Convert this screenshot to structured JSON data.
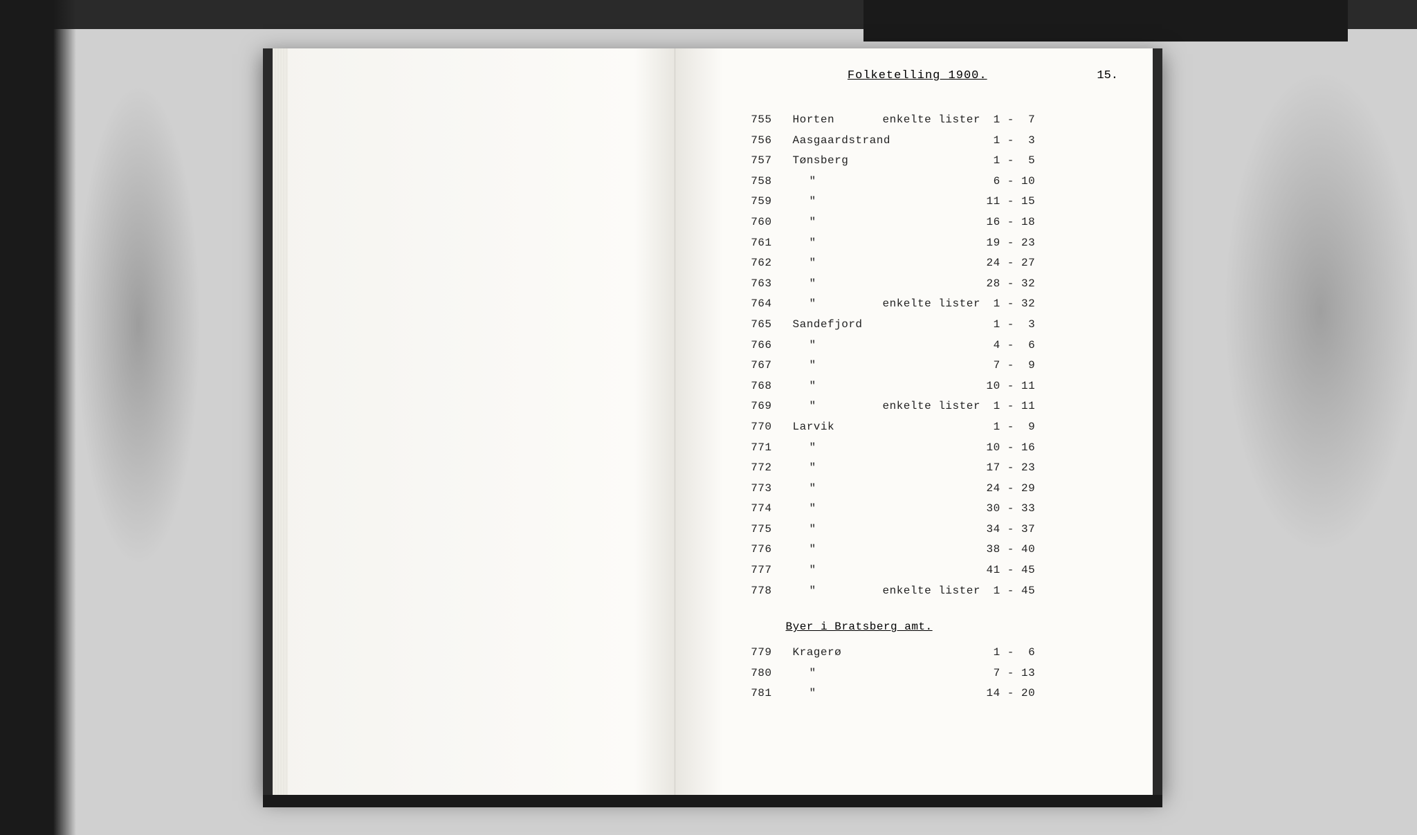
{
  "page": {
    "title": "Folketelling 1900.",
    "number": "15."
  },
  "section1": {
    "rows": [
      {
        "num": "755",
        "name": "Horten",
        "note": "enkelte lister",
        "range": " 1 -  7"
      },
      {
        "num": "756",
        "name": "Aasgaardstrand",
        "note": "",
        "range": " 1 -  3"
      },
      {
        "num": "757",
        "name": "Tønsberg",
        "note": "",
        "range": " 1 -  5"
      },
      {
        "num": "758",
        "name": "\"",
        "note": "",
        "range": " 6 - 10"
      },
      {
        "num": "759",
        "name": "\"",
        "note": "",
        "range": "11 - 15"
      },
      {
        "num": "760",
        "name": "\"",
        "note": "",
        "range": "16 - 18"
      },
      {
        "num": "761",
        "name": "\"",
        "note": "",
        "range": "19 - 23"
      },
      {
        "num": "762",
        "name": "\"",
        "note": "",
        "range": "24 - 27"
      },
      {
        "num": "763",
        "name": "\"",
        "note": "",
        "range": "28 - 32"
      },
      {
        "num": "764",
        "name": "\"",
        "note": "enkelte lister",
        "range": " 1 - 32"
      },
      {
        "num": "765",
        "name": "Sandefjord",
        "note": "",
        "range": " 1 -  3"
      },
      {
        "num": "766",
        "name": "\"",
        "note": "",
        "range": " 4 -  6"
      },
      {
        "num": "767",
        "name": "\"",
        "note": "",
        "range": " 7 -  9"
      },
      {
        "num": "768",
        "name": "\"",
        "note": "",
        "range": "10 - 11"
      },
      {
        "num": "769",
        "name": "\"",
        "note": "enkelte lister",
        "range": " 1 - 11"
      },
      {
        "num": "770",
        "name": "Larvik",
        "note": "",
        "range": " 1 -  9"
      },
      {
        "num": "771",
        "name": "\"",
        "note": "",
        "range": "10 - 16"
      },
      {
        "num": "772",
        "name": "\"",
        "note": "",
        "range": "17 - 23"
      },
      {
        "num": "773",
        "name": "\"",
        "note": "",
        "range": "24 - 29"
      },
      {
        "num": "774",
        "name": "\"",
        "note": "",
        "range": "30 - 33"
      },
      {
        "num": "775",
        "name": "\"",
        "note": "",
        "range": "34 - 37"
      },
      {
        "num": "776",
        "name": "\"",
        "note": "",
        "range": "38 - 40"
      },
      {
        "num": "777",
        "name": "\"",
        "note": "",
        "range": "41 - 45"
      },
      {
        "num": "778",
        "name": "\"",
        "note": "enkelte lister",
        "range": " 1 - 45"
      }
    ]
  },
  "section2": {
    "header": "Byer i Bratsberg amt.",
    "rows": [
      {
        "num": "779",
        "name": "Kragerø",
        "note": "",
        "range": " 1 -  6"
      },
      {
        "num": "780",
        "name": "\"",
        "note": "",
        "range": " 7 - 13"
      },
      {
        "num": "781",
        "name": "\"",
        "note": "",
        "range": "14 - 20"
      }
    ]
  },
  "style": {
    "font": "Courier New",
    "text_color": "#222222",
    "page_bg": "#fcfbf8",
    "backdrop_bg": "#c8c8c8",
    "fontsize_body": 16,
    "fontsize_title": 17,
    "line_height": 1.85
  }
}
